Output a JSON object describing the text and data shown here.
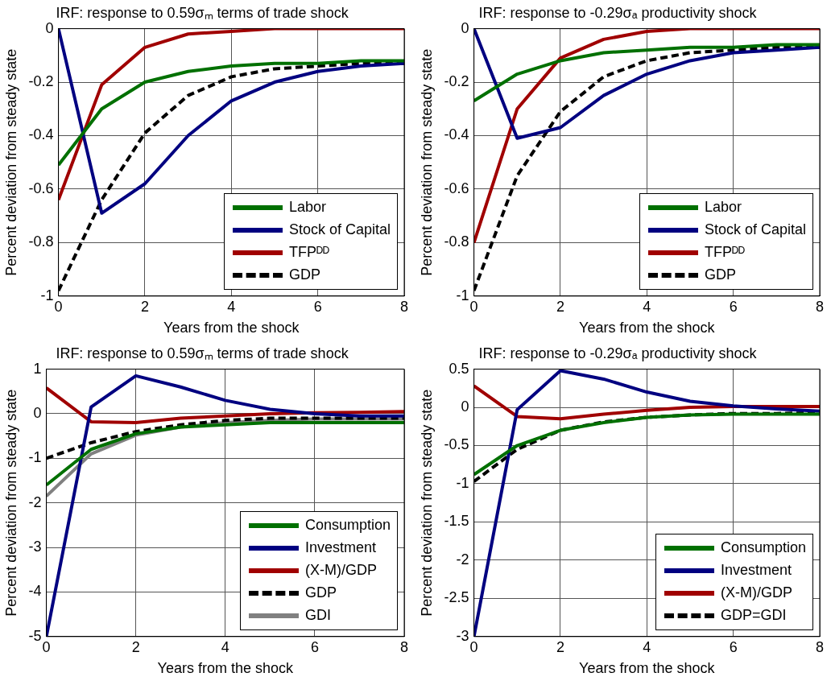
{
  "chart_data": [
    {
      "type": "line",
      "title": "IRF: response to 0.59σₘ terms of trade shock",
      "xlabel": "Years from the shock",
      "ylabel": "Percent deviation from steady state",
      "x": [
        0,
        1,
        2,
        3,
        4,
        5,
        6,
        7,
        8
      ],
      "xlim": [
        0,
        8
      ],
      "xticks": [
        0,
        2,
        4,
        6,
        8
      ],
      "ylim": [
        -1,
        0
      ],
      "yticks": [
        -1,
        -0.8,
        -0.6,
        -0.4,
        -0.2,
        0
      ],
      "grid": true,
      "legend": "bottom right",
      "series": [
        {
          "name": "Labor",
          "color": "#007000",
          "values": [
            -0.51,
            -0.3,
            -0.2,
            -0.16,
            -0.14,
            -0.13,
            -0.13,
            -0.12,
            -0.12
          ]
        },
        {
          "name": "Stock of Capital",
          "color": "#000080",
          "values": [
            0,
            -0.69,
            -0.58,
            -0.4,
            -0.27,
            -0.2,
            -0.16,
            -0.14,
            -0.13
          ]
        },
        {
          "name": "TFPᴰᴰ",
          "color": "#a00000",
          "values": [
            -0.64,
            -0.21,
            -0.07,
            -0.02,
            -0.01,
            0,
            0,
            0,
            0
          ]
        },
        {
          "name": "GDP",
          "color": "#000000",
          "line_style": "dashed",
          "values": [
            -0.98,
            -0.64,
            -0.39,
            -0.25,
            -0.18,
            -0.15,
            -0.14,
            -0.13,
            -0.13
          ]
        }
      ]
    },
    {
      "type": "line",
      "title": "IRF: response to -0.29σₐ productivity shock",
      "xlabel": "Years from the shock",
      "ylabel": "Percent deviation from steady state",
      "x": [
        0,
        1,
        2,
        3,
        4,
        5,
        6,
        7,
        8
      ],
      "xlim": [
        0,
        8
      ],
      "xticks": [
        0,
        2,
        4,
        6,
        8
      ],
      "ylim": [
        -1,
        0
      ],
      "yticks": [
        -1,
        -0.8,
        -0.6,
        -0.4,
        -0.2,
        0
      ],
      "grid": true,
      "legend": "bottom right",
      "series": [
        {
          "name": "Labor",
          "color": "#007000",
          "values": [
            -0.27,
            -0.17,
            -0.12,
            -0.09,
            -0.08,
            -0.07,
            -0.07,
            -0.06,
            -0.06
          ]
        },
        {
          "name": "Stock of Capital",
          "color": "#000080",
          "values": [
            0,
            -0.41,
            -0.37,
            -0.25,
            -0.17,
            -0.12,
            -0.09,
            -0.08,
            -0.07
          ]
        },
        {
          "name": "TFPᴰᴰ",
          "color": "#a00000",
          "values": [
            -0.8,
            -0.3,
            -0.11,
            -0.04,
            -0.01,
            0,
            0,
            0,
            0
          ]
        },
        {
          "name": "GDP",
          "color": "#000000",
          "line_style": "dashed",
          "values": [
            -0.98,
            -0.55,
            -0.31,
            -0.18,
            -0.12,
            -0.09,
            -0.08,
            -0.07,
            -0.07
          ]
        }
      ]
    },
    {
      "type": "line",
      "title": "IRF: response to 0.59σₘ terms of trade shock",
      "xlabel": "Years from the shock",
      "ylabel": "Percent deviation from steady state",
      "x": [
        0,
        1,
        2,
        3,
        4,
        5,
        6,
        7,
        8
      ],
      "xlim": [
        0,
        8
      ],
      "xticks": [
        0,
        2,
        4,
        6,
        8
      ],
      "ylim": [
        -5,
        1
      ],
      "yticks": [
        -5,
        -4,
        -3,
        -2,
        -1,
        0,
        1
      ],
      "grid": true,
      "legend": "bottom right",
      "series": [
        {
          "name": "Consumption",
          "color": "#007000",
          "values": [
            -1.6,
            -0.8,
            -0.45,
            -0.3,
            -0.25,
            -0.2,
            -0.2,
            -0.2,
            -0.2
          ]
        },
        {
          "name": "Investment",
          "color": "#000080",
          "values": [
            -5,
            0.15,
            0.85,
            0.6,
            0.3,
            0.1,
            0,
            -0.05,
            -0.05
          ]
        },
        {
          "name": "(X-M)/GDP",
          "color": "#a00000",
          "values": [
            0.58,
            -0.18,
            -0.2,
            -0.1,
            -0.05,
            0,
            0.02,
            0.03,
            0.05
          ]
        },
        {
          "name": "GDP",
          "color": "#000000",
          "line_style": "dashed",
          "values": [
            -1,
            -0.65,
            -0.4,
            -0.25,
            -0.15,
            -0.1,
            -0.1,
            -0.1,
            -0.1
          ]
        },
        {
          "name": "GDI",
          "color": "#808080",
          "values": [
            -1.85,
            -0.9,
            -0.48,
            -0.3,
            -0.2,
            -0.15,
            -0.12,
            -0.12,
            -0.12
          ]
        }
      ]
    },
    {
      "type": "line",
      "title": "IRF: response to -0.29σₐ productivity shock",
      "xlabel": "Years from the shock",
      "ylabel": "Percent deviation from steady state",
      "x": [
        0,
        1,
        2,
        3,
        4,
        5,
        6,
        7,
        8
      ],
      "xlim": [
        0,
        8
      ],
      "xticks": [
        0,
        2,
        4,
        6,
        8
      ],
      "ylim": [
        -3,
        0.5
      ],
      "yticks": [
        -3,
        -2.5,
        -2,
        -1.5,
        -1,
        -0.5,
        0,
        0.5
      ],
      "grid": true,
      "legend": "bottom right",
      "series": [
        {
          "name": "Consumption",
          "color": "#007000",
          "values": [
            -0.88,
            -0.5,
            -0.3,
            -0.2,
            -0.13,
            -0.1,
            -0.09,
            -0.09,
            -0.09
          ]
        },
        {
          "name": "Investment",
          "color": "#000080",
          "values": [
            -3,
            -0.03,
            0.48,
            0.37,
            0.2,
            0.08,
            0.02,
            -0.02,
            -0.05
          ]
        },
        {
          "name": "(X-M)/GDP",
          "color": "#a00000",
          "values": [
            0.28,
            -0.12,
            -0.15,
            -0.09,
            -0.04,
            0,
            0.01,
            0.01,
            0.01
          ]
        },
        {
          "name": "GDP=GDI",
          "color": "#000000",
          "line_style": "dashed",
          "values": [
            -0.97,
            -0.55,
            -0.3,
            -0.19,
            -0.13,
            -0.1,
            -0.08,
            -0.08,
            -0.07
          ]
        }
      ]
    }
  ]
}
